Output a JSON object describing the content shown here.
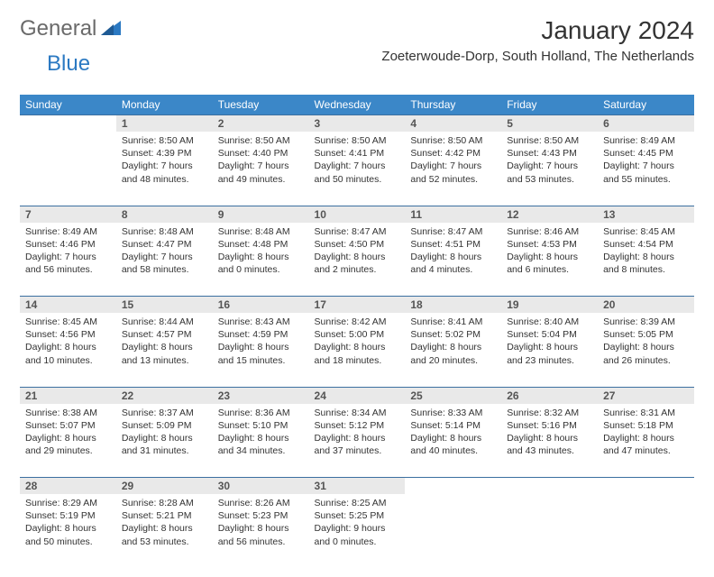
{
  "logo": {
    "text1": "General",
    "text2": "Blue"
  },
  "title": "January 2024",
  "location": "Zoeterwoude-Dorp, South Holland, The Netherlands",
  "colors": {
    "header_bg": "#3b87c8",
    "header_text": "#ffffff",
    "daynum_bg": "#e9e9e9",
    "border": "#3b6fa0",
    "logo_gray": "#6a6a6a",
    "logo_blue": "#2b79c2"
  },
  "weekdays": [
    "Sunday",
    "Monday",
    "Tuesday",
    "Wednesday",
    "Thursday",
    "Friday",
    "Saturday"
  ],
  "weeks": [
    [
      null,
      {
        "n": "1",
        "sr": "8:50 AM",
        "ss": "4:39 PM",
        "dl": "7 hours and 48 minutes."
      },
      {
        "n": "2",
        "sr": "8:50 AM",
        "ss": "4:40 PM",
        "dl": "7 hours and 49 minutes."
      },
      {
        "n": "3",
        "sr": "8:50 AM",
        "ss": "4:41 PM",
        "dl": "7 hours and 50 minutes."
      },
      {
        "n": "4",
        "sr": "8:50 AM",
        "ss": "4:42 PM",
        "dl": "7 hours and 52 minutes."
      },
      {
        "n": "5",
        "sr": "8:50 AM",
        "ss": "4:43 PM",
        "dl": "7 hours and 53 minutes."
      },
      {
        "n": "6",
        "sr": "8:49 AM",
        "ss": "4:45 PM",
        "dl": "7 hours and 55 minutes."
      }
    ],
    [
      {
        "n": "7",
        "sr": "8:49 AM",
        "ss": "4:46 PM",
        "dl": "7 hours and 56 minutes."
      },
      {
        "n": "8",
        "sr": "8:48 AM",
        "ss": "4:47 PM",
        "dl": "7 hours and 58 minutes."
      },
      {
        "n": "9",
        "sr": "8:48 AM",
        "ss": "4:48 PM",
        "dl": "8 hours and 0 minutes."
      },
      {
        "n": "10",
        "sr": "8:47 AM",
        "ss": "4:50 PM",
        "dl": "8 hours and 2 minutes."
      },
      {
        "n": "11",
        "sr": "8:47 AM",
        "ss": "4:51 PM",
        "dl": "8 hours and 4 minutes."
      },
      {
        "n": "12",
        "sr": "8:46 AM",
        "ss": "4:53 PM",
        "dl": "8 hours and 6 minutes."
      },
      {
        "n": "13",
        "sr": "8:45 AM",
        "ss": "4:54 PM",
        "dl": "8 hours and 8 minutes."
      }
    ],
    [
      {
        "n": "14",
        "sr": "8:45 AM",
        "ss": "4:56 PM",
        "dl": "8 hours and 10 minutes."
      },
      {
        "n": "15",
        "sr": "8:44 AM",
        "ss": "4:57 PM",
        "dl": "8 hours and 13 minutes."
      },
      {
        "n": "16",
        "sr": "8:43 AM",
        "ss": "4:59 PM",
        "dl": "8 hours and 15 minutes."
      },
      {
        "n": "17",
        "sr": "8:42 AM",
        "ss": "5:00 PM",
        "dl": "8 hours and 18 minutes."
      },
      {
        "n": "18",
        "sr": "8:41 AM",
        "ss": "5:02 PM",
        "dl": "8 hours and 20 minutes."
      },
      {
        "n": "19",
        "sr": "8:40 AM",
        "ss": "5:04 PM",
        "dl": "8 hours and 23 minutes."
      },
      {
        "n": "20",
        "sr": "8:39 AM",
        "ss": "5:05 PM",
        "dl": "8 hours and 26 minutes."
      }
    ],
    [
      {
        "n": "21",
        "sr": "8:38 AM",
        "ss": "5:07 PM",
        "dl": "8 hours and 29 minutes."
      },
      {
        "n": "22",
        "sr": "8:37 AM",
        "ss": "5:09 PM",
        "dl": "8 hours and 31 minutes."
      },
      {
        "n": "23",
        "sr": "8:36 AM",
        "ss": "5:10 PM",
        "dl": "8 hours and 34 minutes."
      },
      {
        "n": "24",
        "sr": "8:34 AM",
        "ss": "5:12 PM",
        "dl": "8 hours and 37 minutes."
      },
      {
        "n": "25",
        "sr": "8:33 AM",
        "ss": "5:14 PM",
        "dl": "8 hours and 40 minutes."
      },
      {
        "n": "26",
        "sr": "8:32 AM",
        "ss": "5:16 PM",
        "dl": "8 hours and 43 minutes."
      },
      {
        "n": "27",
        "sr": "8:31 AM",
        "ss": "5:18 PM",
        "dl": "8 hours and 47 minutes."
      }
    ],
    [
      {
        "n": "28",
        "sr": "8:29 AM",
        "ss": "5:19 PM",
        "dl": "8 hours and 50 minutes."
      },
      {
        "n": "29",
        "sr": "8:28 AM",
        "ss": "5:21 PM",
        "dl": "8 hours and 53 minutes."
      },
      {
        "n": "30",
        "sr": "8:26 AM",
        "ss": "5:23 PM",
        "dl": "8 hours and 56 minutes."
      },
      {
        "n": "31",
        "sr": "8:25 AM",
        "ss": "5:25 PM",
        "dl": "9 hours and 0 minutes."
      },
      null,
      null,
      null
    ]
  ]
}
